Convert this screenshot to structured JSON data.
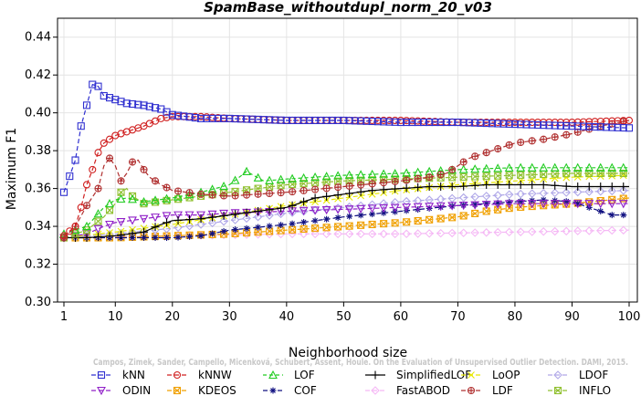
{
  "chart_data": {
    "type": "line",
    "title": "SpamBase_withoutdupl_norm_20_v03",
    "xlabel": "Neighborhood size",
    "ylabel": "Maximum F1",
    "xlim": [
      1,
      100
    ],
    "ylim": [
      0.3,
      0.45
    ],
    "x_ticks": [
      1,
      10,
      20,
      30,
      40,
      50,
      60,
      70,
      80,
      90,
      100
    ],
    "y_ticks": [
      0.3,
      0.32,
      0.34,
      0.36,
      0.38,
      0.4,
      0.42,
      0.44
    ],
    "x_tick_labels": [
      "1",
      "10",
      "20",
      "30",
      "40",
      "50",
      "60",
      "70",
      "80",
      "90",
      "100"
    ],
    "y_tick_labels": [
      "0.30",
      "0.32",
      "0.34",
      "0.36",
      "0.38",
      "0.40",
      "0.42",
      "0.44"
    ],
    "grid": true,
    "legend_position": "bottom",
    "watermark": "Campos, Zimek, Sander, Campello, Micenková, Schubert, Assent, Houle. On the Evaluation of Unsupervised Outlier Detection. DAMI, 2015.",
    "series": [
      {
        "name": "kNN",
        "color": "#3030d0",
        "dash": "5,3",
        "marker": "square",
        "pts": [
          [
            1,
            0.358
          ],
          [
            3,
            0.375
          ],
          [
            4,
            0.393
          ],
          [
            5,
            0.404
          ],
          [
            6,
            0.415
          ],
          [
            7,
            0.414
          ],
          [
            8,
            0.409
          ],
          [
            10,
            0.407
          ],
          [
            12,
            0.405
          ],
          [
            15,
            0.404
          ],
          [
            18,
            0.402
          ],
          [
            20,
            0.399
          ],
          [
            25,
            0.397
          ],
          [
            30,
            0.397
          ],
          [
            40,
            0.396
          ],
          [
            50,
            0.396
          ],
          [
            60,
            0.395
          ],
          [
            70,
            0.395
          ],
          [
            80,
            0.394
          ],
          [
            90,
            0.393
          ],
          [
            100,
            0.392
          ]
        ]
      },
      {
        "name": "kNNW",
        "color": "#d02020",
        "dash": "5,3",
        "marker": "circle",
        "pts": [
          [
            1,
            0.335
          ],
          [
            3,
            0.34
          ],
          [
            4,
            0.35
          ],
          [
            5,
            0.362
          ],
          [
            6,
            0.37
          ],
          [
            7,
            0.379
          ],
          [
            8,
            0.384
          ],
          [
            10,
            0.388
          ],
          [
            12,
            0.39
          ],
          [
            15,
            0.393
          ],
          [
            18,
            0.397
          ],
          [
            20,
            0.398
          ],
          [
            25,
            0.398
          ],
          [
            30,
            0.397
          ],
          [
            40,
            0.396
          ],
          [
            50,
            0.396
          ],
          [
            60,
            0.396
          ],
          [
            70,
            0.395
          ],
          [
            80,
            0.395
          ],
          [
            90,
            0.395
          ],
          [
            100,
            0.396
          ]
        ]
      },
      {
        "name": "LOF",
        "color": "#22cc22",
        "dash": "4,3",
        "marker": "triangle",
        "pts": [
          [
            1,
            0.336
          ],
          [
            5,
            0.34
          ],
          [
            8,
            0.35
          ],
          [
            10,
            0.354
          ],
          [
            12,
            0.355
          ],
          [
            15,
            0.353
          ],
          [
            20,
            0.355
          ],
          [
            25,
            0.358
          ],
          [
            30,
            0.362
          ],
          [
            33,
            0.369
          ],
          [
            36,
            0.364
          ],
          [
            40,
            0.365
          ],
          [
            50,
            0.367
          ],
          [
            60,
            0.368
          ],
          [
            70,
            0.37
          ],
          [
            80,
            0.371
          ],
          [
            90,
            0.371
          ],
          [
            100,
            0.371
          ]
        ]
      },
      {
        "name": "SimplifiedLOF",
        "color": "#000000",
        "dash": "none",
        "marker": "plus",
        "pts": [
          [
            1,
            0.334
          ],
          [
            5,
            0.334
          ],
          [
            10,
            0.335
          ],
          [
            15,
            0.337
          ],
          [
            18,
            0.341
          ],
          [
            20,
            0.343
          ],
          [
            25,
            0.344
          ],
          [
            30,
            0.346
          ],
          [
            35,
            0.348
          ],
          [
            40,
            0.35
          ],
          [
            45,
            0.355
          ],
          [
            50,
            0.357
          ],
          [
            55,
            0.359
          ],
          [
            60,
            0.36
          ],
          [
            65,
            0.361
          ],
          [
            70,
            0.361
          ],
          [
            75,
            0.362
          ],
          [
            80,
            0.362
          ],
          [
            85,
            0.362
          ],
          [
            90,
            0.361
          ],
          [
            100,
            0.361
          ]
        ]
      },
      {
        "name": "LoOP",
        "color": "#e8e800",
        "dash": "5,3",
        "marker": "x",
        "pts": [
          [
            1,
            0.334
          ],
          [
            10,
            0.337
          ],
          [
            20,
            0.341
          ],
          [
            30,
            0.346
          ],
          [
            40,
            0.351
          ],
          [
            50,
            0.355
          ],
          [
            60,
            0.359
          ],
          [
            70,
            0.362
          ],
          [
            80,
            0.364
          ],
          [
            90,
            0.366
          ],
          [
            100,
            0.367
          ]
        ]
      },
      {
        "name": "LDOF",
        "color": "#b0a8e8",
        "dash": "5,3",
        "marker": "diamond",
        "pts": [
          [
            1,
            0.334
          ],
          [
            10,
            0.336
          ],
          [
            20,
            0.339
          ],
          [
            30,
            0.343
          ],
          [
            40,
            0.347
          ],
          [
            50,
            0.35
          ],
          [
            60,
            0.353
          ],
          [
            70,
            0.355
          ],
          [
            80,
            0.357
          ],
          [
            90,
            0.358
          ],
          [
            100,
            0.359
          ]
        ]
      },
      {
        "name": "ODIN",
        "color": "#9020c8",
        "dash": "5,3",
        "marker": "triangle-down",
        "pts": [
          [
            1,
            0.334
          ],
          [
            5,
            0.336
          ],
          [
            8,
            0.34
          ],
          [
            10,
            0.342
          ],
          [
            15,
            0.344
          ],
          [
            20,
            0.346
          ],
          [
            25,
            0.346
          ],
          [
            30,
            0.347
          ],
          [
            40,
            0.348
          ],
          [
            50,
            0.349
          ],
          [
            60,
            0.35
          ],
          [
            70,
            0.351
          ],
          [
            80,
            0.352
          ],
          [
            90,
            0.352
          ],
          [
            100,
            0.352
          ]
        ]
      },
      {
        "name": "KDEOS",
        "color": "#f0a000",
        "dash": "5,3",
        "marker": "square-x",
        "pts": [
          [
            1,
            0.334
          ],
          [
            10,
            0.334
          ],
          [
            20,
            0.335
          ],
          [
            30,
            0.336
          ],
          [
            40,
            0.338
          ],
          [
            50,
            0.34
          ],
          [
            60,
            0.342
          ],
          [
            70,
            0.345
          ],
          [
            75,
            0.348
          ],
          [
            80,
            0.35
          ],
          [
            90,
            0.352
          ],
          [
            100,
            0.355
          ]
        ]
      },
      {
        "name": "COF",
        "color": "#101080",
        "dash": "5,3",
        "marker": "star",
        "pts": [
          [
            1,
            0.334
          ],
          [
            10,
            0.334
          ],
          [
            20,
            0.334
          ],
          [
            25,
            0.335
          ],
          [
            30,
            0.338
          ],
          [
            40,
            0.341
          ],
          [
            50,
            0.345
          ],
          [
            60,
            0.348
          ],
          [
            70,
            0.351
          ],
          [
            75,
            0.352
          ],
          [
            80,
            0.353
          ],
          [
            85,
            0.354
          ],
          [
            90,
            0.353
          ],
          [
            95,
            0.348
          ],
          [
            97,
            0.346
          ],
          [
            100,
            0.346
          ]
        ]
      },
      {
        "name": "FastABOD",
        "color": "#f5b8f5",
        "dash": "5,3",
        "marker": "diamond",
        "pts": [
          [
            1,
            0.334
          ],
          [
            20,
            0.335
          ],
          [
            40,
            0.336
          ],
          [
            60,
            0.336
          ],
          [
            80,
            0.337
          ],
          [
            100,
            0.338
          ]
        ]
      },
      {
        "name": "LDF",
        "color": "#b03030",
        "dash": "5,3",
        "marker": "circle-plus",
        "pts": [
          [
            1,
            0.334
          ],
          [
            3,
            0.34
          ],
          [
            5,
            0.351
          ],
          [
            7,
            0.36
          ],
          [
            8,
            0.372
          ],
          [
            9,
            0.376
          ],
          [
            10,
            0.372
          ],
          [
            11,
            0.364
          ],
          [
            12,
            0.368
          ],
          [
            13,
            0.374
          ],
          [
            14,
            0.375
          ],
          [
            15,
            0.37
          ],
          [
            16,
            0.366
          ],
          [
            18,
            0.362
          ],
          [
            20,
            0.359
          ],
          [
            25,
            0.357
          ],
          [
            30,
            0.356
          ],
          [
            40,
            0.358
          ],
          [
            50,
            0.361
          ],
          [
            60,
            0.364
          ],
          [
            65,
            0.366
          ],
          [
            68,
            0.368
          ],
          [
            70,
            0.372
          ],
          [
            72,
            0.376
          ],
          [
            75,
            0.379
          ],
          [
            80,
            0.384
          ],
          [
            85,
            0.386
          ],
          [
            90,
            0.389
          ],
          [
            95,
            0.393
          ],
          [
            100,
            0.396
          ]
        ]
      },
      {
        "name": "INFLO",
        "color": "#90c030",
        "dash": "5,3",
        "marker": "square-x",
        "pts": [
          [
            1,
            0.334
          ],
          [
            5,
            0.338
          ],
          [
            8,
            0.345
          ],
          [
            10,
            0.352
          ],
          [
            11,
            0.358
          ],
          [
            12,
            0.36
          ],
          [
            13,
            0.356
          ],
          [
            15,
            0.352
          ],
          [
            20,
            0.354
          ],
          [
            25,
            0.356
          ],
          [
            30,
            0.358
          ],
          [
            40,
            0.362
          ],
          [
            50,
            0.364
          ],
          [
            60,
            0.365
          ],
          [
            70,
            0.366
          ],
          [
            80,
            0.367
          ],
          [
            90,
            0.368
          ],
          [
            100,
            0.368
          ]
        ]
      }
    ]
  }
}
